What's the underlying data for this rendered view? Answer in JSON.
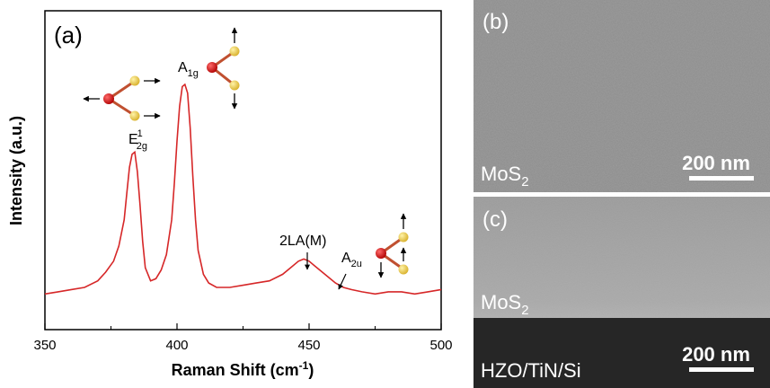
{
  "panels": {
    "a": {
      "label": "(a)",
      "chart_data": {
        "type": "line",
        "xlabel": "Raman Shift (cm",
        "xlabel_sup": "-1",
        "xlabel_close": ")",
        "ylabel": "Intensity (a.u.)",
        "xlim": [
          350,
          500
        ],
        "ylim": [
          0,
          1
        ],
        "x_ticks": [
          "350",
          "400",
          "450",
          "500"
        ],
        "y_ticks_shown": false,
        "series": [
          {
            "color": "#d62728",
            "x": [
              350,
              355,
              360,
              365,
              370,
              373,
              376,
              378,
              380,
              381,
              382,
              383,
              384,
              385,
              386,
              387,
              388,
              390,
              392,
              394,
              396,
              398,
              399,
              400,
              401,
              402,
              403,
              404,
              405,
              406,
              407,
              408,
              410,
              412,
              415,
              420,
              425,
              430,
              435,
              440,
              443,
              446,
              448,
              450,
              452,
              455,
              458,
              460,
              463,
              466,
              470,
              475,
              480,
              485,
              490,
              495,
              500
            ],
            "y": [
              0.04,
              0.05,
              0.06,
              0.07,
              0.1,
              0.14,
              0.19,
              0.26,
              0.38,
              0.5,
              0.62,
              0.68,
              0.69,
              0.6,
              0.45,
              0.28,
              0.16,
              0.1,
              0.11,
              0.15,
              0.22,
              0.38,
              0.55,
              0.74,
              0.9,
              0.99,
              1.0,
              0.96,
              0.8,
              0.58,
              0.38,
              0.24,
              0.13,
              0.09,
              0.07,
              0.07,
              0.08,
              0.09,
              0.1,
              0.13,
              0.16,
              0.19,
              0.2,
              0.19,
              0.17,
              0.14,
              0.11,
              0.09,
              0.07,
              0.06,
              0.05,
              0.04,
              0.05,
              0.05,
              0.04,
              0.05,
              0.06
            ]
          }
        ],
        "annotations": [
          {
            "base": "E",
            "sup": "1",
            "sub": "2g",
            "x": 384
          },
          {
            "base": "A",
            "sub": "1g",
            "x": 403
          },
          {
            "text": "2LA(M)",
            "x": 448
          },
          {
            "base": "A",
            "sub": "2u",
            "x": 461
          }
        ]
      }
    },
    "b": {
      "label": "(b)",
      "material_base": "MoS",
      "material_sub": "2",
      "scalebar": "200 nm"
    },
    "c": {
      "label": "(c)",
      "layer1_base": "MoS",
      "layer1_sub": "2",
      "layer2": "HZO/TiN/Si",
      "scalebar": "200 nm"
    }
  },
  "colors": {
    "curve": "#d62728",
    "atom_mo": "#cc0000",
    "atom_s": "#f2d04a",
    "sem_gray": "#8a8a8a"
  }
}
